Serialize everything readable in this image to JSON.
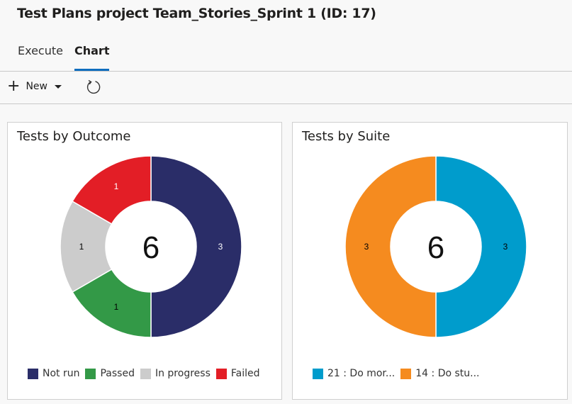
{
  "header": {
    "title": "Test Plans project Team_Stories_Sprint 1 (ID: 17)"
  },
  "tabs": [
    {
      "label": "Execute",
      "active": false
    },
    {
      "label": "Chart",
      "active": true
    }
  ],
  "toolbar": {
    "new_label": "New",
    "refresh_icon": "refresh-icon",
    "plus_icon": "plus-icon"
  },
  "panels": [
    {
      "title": "Tests by Outcome",
      "total": "6"
    },
    {
      "title": "Tests by Suite",
      "total": "6"
    }
  ],
  "chart_data": [
    {
      "type": "pie",
      "variant": "donut",
      "title": "Tests by Outcome",
      "center_label": "6",
      "categories": [
        "Not run",
        "Passed",
        "In progress",
        "Failed"
      ],
      "values": [
        3,
        1,
        1,
        1
      ],
      "colors": [
        "#2a2d68",
        "#339947",
        "#cccccc",
        "#e31e26"
      ],
      "label_colors": [
        "#ffffff",
        "#000000",
        "#000000",
        "#ffffff"
      ],
      "legend_position": "bottom"
    },
    {
      "type": "pie",
      "variant": "donut",
      "title": "Tests by Suite",
      "center_label": "6",
      "categories": [
        "21 : Do mor...",
        "14 : Do stu..."
      ],
      "values": [
        3,
        3
      ],
      "colors": [
        "#009ccc",
        "#f58b1f"
      ],
      "label_colors": [
        "#000000",
        "#000000"
      ],
      "legend_position": "bottom"
    }
  ]
}
